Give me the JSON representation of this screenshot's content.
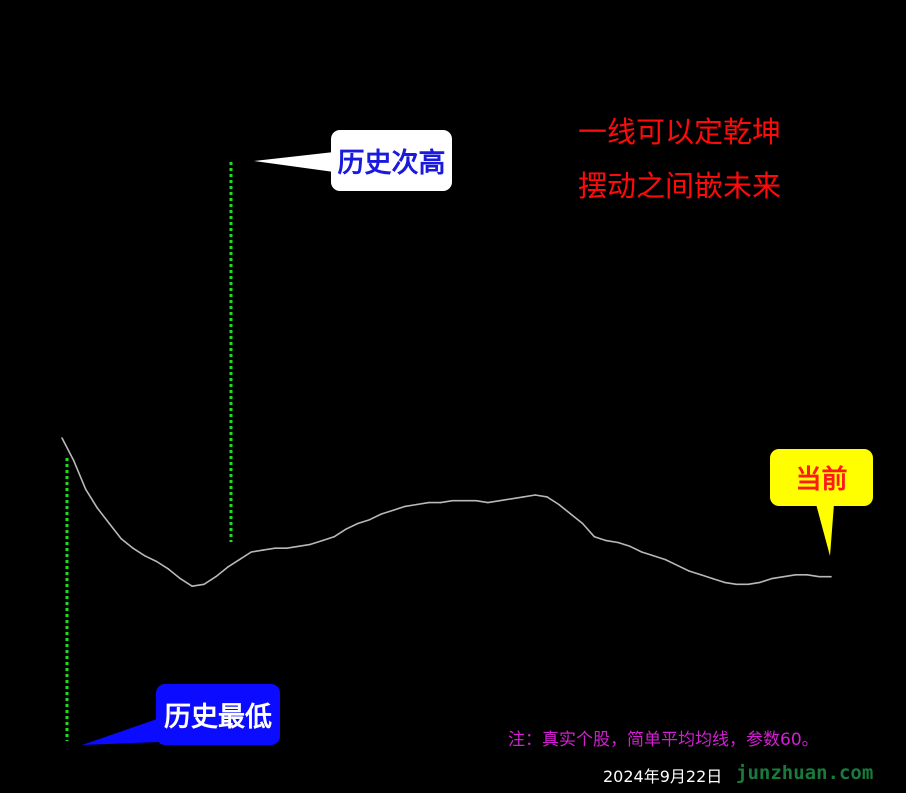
{
  "chart_data": {
    "type": "line",
    "title": "",
    "xlabel": "",
    "ylabel": "",
    "series": [
      {
        "values": [
          100,
          88,
          73,
          63,
          55,
          47,
          42,
          38,
          35,
          31,
          26,
          22,
          23,
          27,
          32,
          36,
          40,
          41,
          42,
          42,
          43,
          44,
          46,
          48,
          52,
          55,
          57,
          60,
          62,
          64,
          65,
          66,
          66,
          67,
          67,
          67,
          66,
          67,
          68,
          69,
          70,
          69,
          65,
          60,
          55,
          48,
          46,
          45,
          43,
          40,
          38,
          36,
          33,
          30,
          28,
          26,
          24,
          23,
          23,
          24,
          26,
          27,
          28,
          28,
          27,
          27
        ]
      }
    ],
    "ylim": [
      0,
      130
    ],
    "grid": false
  },
  "annotations": {
    "high_label": "历史次高",
    "low_label": "历史最低",
    "current_label": "当前"
  },
  "slogan": {
    "line1": "一线可以定乾坤",
    "line2": "摆动之间嵌未来"
  },
  "footer": {
    "note": "注：真实个股，简单平均均线，参数60。",
    "date": "2024年9月22日",
    "watermark": "junzhuan.com"
  },
  "colors": {
    "background": "#000000",
    "line": "#b8b8b8",
    "marker_dotted": "#22dd22",
    "slogan": "#ff0a0a",
    "note": "#d21fd2"
  }
}
